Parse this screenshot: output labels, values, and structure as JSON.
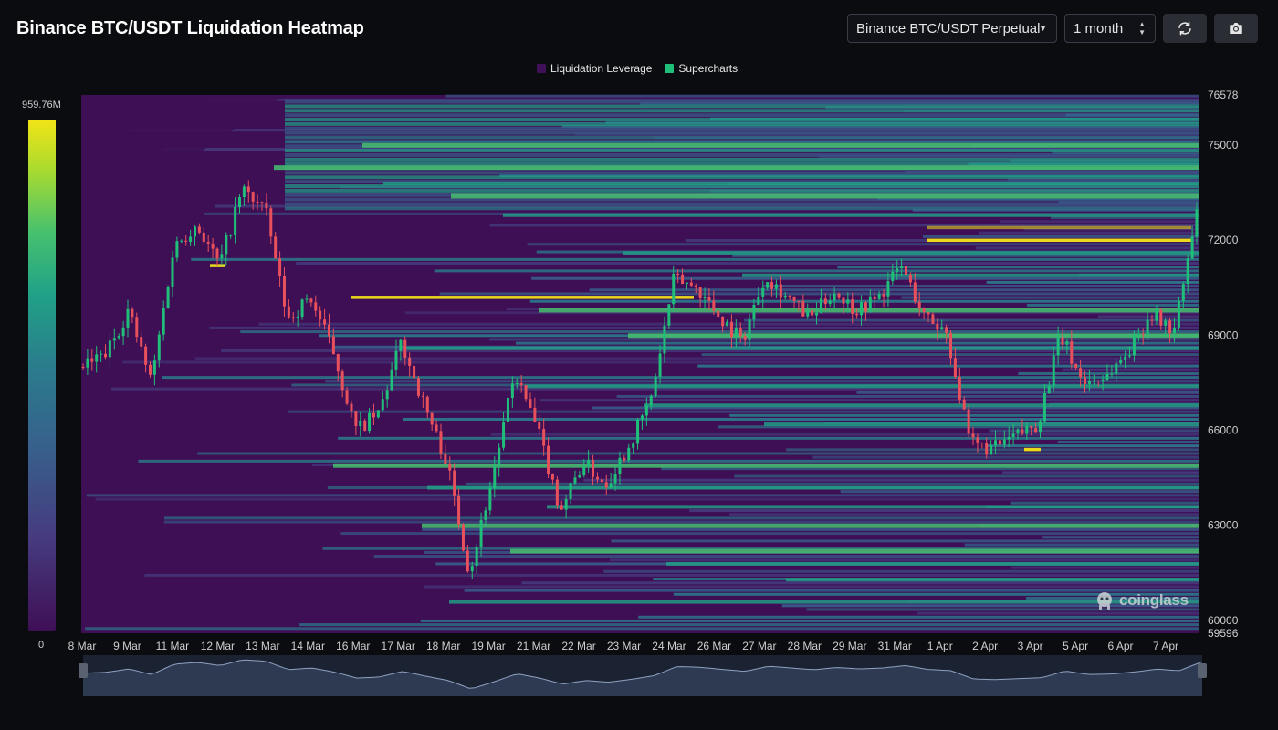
{
  "header": {
    "title": "Binance BTC/USDT Liquidation Heatmap",
    "market_select": "Binance BTC/USDT Perpetual",
    "range_select": "1 month"
  },
  "icons": {
    "refresh": "refresh-icon",
    "camera": "camera-icon",
    "dropdown": "chevron-down-icon"
  },
  "legend": [
    {
      "label": "Liquidation Leverage",
      "color": "#3f1058"
    },
    {
      "label": "Supercharts",
      "color": "#1fbf7a"
    }
  ],
  "color_scale": {
    "max_label": "959.76M",
    "min_label": "0",
    "colors": [
      "#3f0f56",
      "#463b7e",
      "#37608c",
      "#2a7d8c",
      "#21a287",
      "#47c16e",
      "#a8db2f",
      "#f2e416"
    ]
  },
  "brand": "coinglass",
  "chart_data": {
    "type": "heatmap",
    "title": "Binance BTC/USDT Liquidation Heatmap",
    "y_axis": {
      "ticks": [
        60000,
        63000,
        66000,
        69000,
        72000,
        75000
      ],
      "top_label": "76578",
      "bottom_label": "59596",
      "ylim": [
        59596,
        76578
      ]
    },
    "x_axis": {
      "ticks": [
        "8 Mar",
        "9 Mar",
        "11 Mar",
        "12 Mar",
        "13 Mar",
        "14 Mar",
        "16 Mar",
        "17 Mar",
        "18 Mar",
        "19 Mar",
        "21 Mar",
        "22 Mar",
        "23 Mar",
        "24 Mar",
        "26 Mar",
        "27 Mar",
        "28 Mar",
        "29 Mar",
        "31 Mar",
        "1 Apr",
        "2 Apr",
        "3 Apr",
        "5 Apr",
        "6 Apr",
        "7 Apr"
      ]
    },
    "price_series": {
      "name": "Supercharts",
      "x": [
        0,
        1,
        2,
        3,
        4,
        5,
        6,
        7,
        8,
        9,
        10,
        11,
        12,
        13,
        14,
        15,
        16,
        17,
        18,
        19,
        20,
        21,
        22,
        23,
        24,
        25,
        26,
        27,
        28,
        29,
        30,
        31,
        32,
        33,
        34,
        35,
        36,
        37,
        38,
        39,
        40,
        41,
        42,
        43,
        44,
        45,
        46,
        47,
        48,
        49
      ],
      "close": [
        68000,
        68400,
        69800,
        67500,
        71800,
        72500,
        71200,
        73600,
        73000,
        69500,
        70200,
        68500,
        66000,
        66500,
        68800,
        66800,
        65000,
        61500,
        64500,
        67800,
        66000,
        63500,
        65000,
        64300,
        65500,
        67000,
        70800,
        70500,
        69600,
        68800,
        70900,
        70200,
        69500,
        70400,
        69800,
        70200,
        71200,
        69600,
        69100,
        65600,
        65400,
        65800,
        66200,
        69000,
        67500,
        67700,
        68500,
        69700,
        69100,
        72800
      ]
    },
    "heat_levels": {
      "hot": [
        70200,
        72000,
        72400,
        71200,
        65400
      ],
      "strong": [
        74300,
        75000,
        73400,
        69800,
        69000,
        64900,
        63000,
        62200
      ],
      "medium": [
        73800,
        72800,
        71600,
        70900,
        68600,
        67400,
        66800,
        66200,
        64200,
        63600,
        61800,
        61300,
        60600
      ]
    },
    "grid": false,
    "legend": "top-center"
  }
}
